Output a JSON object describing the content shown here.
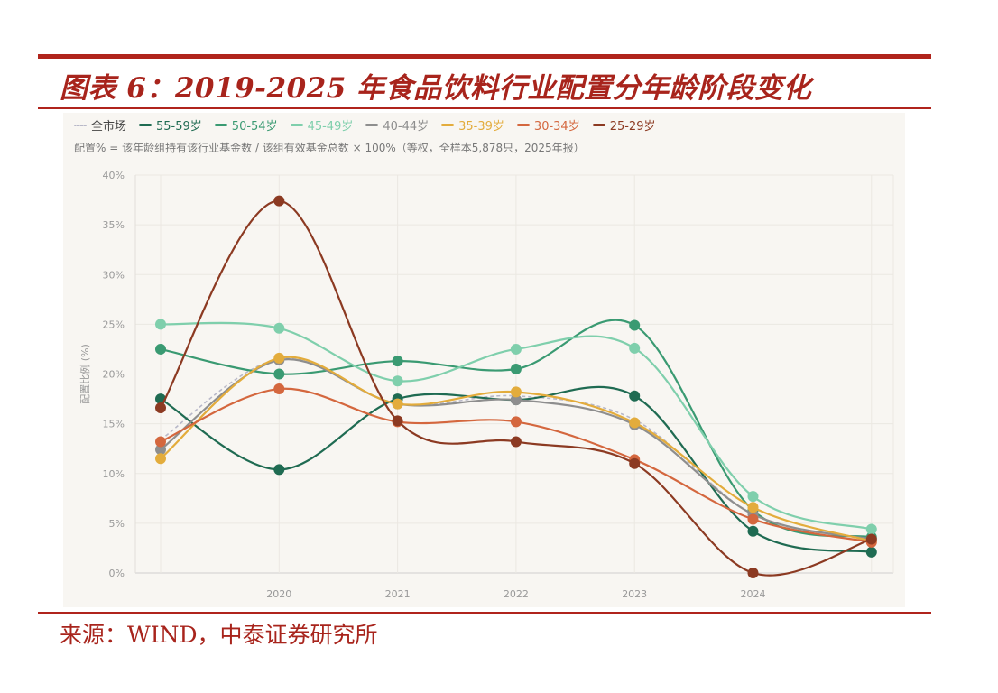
{
  "header": {
    "title": "图表 6：2019-2025 年食品饮料行业配置分年龄阶段变化"
  },
  "footer": {
    "source": "来源：WIND，中泰证券研究所"
  },
  "chart_data": {
    "type": "line",
    "title": "",
    "note": "配置% = 该年龄组持有该行业基金数 / 该组有效基金总数 × 100%（等权，全样本5,878只，2025年报）",
    "xlabel": "",
    "ylabel": "配置比例 (%)",
    "x": [
      2019,
      2020,
      2021,
      2022,
      2023,
      2024,
      2025
    ],
    "x_tick_labels": [
      "2020",
      "2021",
      "2022",
      "2023",
      "2024"
    ],
    "ylim": [
      0,
      40
    ],
    "y_tick_labels": [
      "0%",
      "5%",
      "10%",
      "15%",
      "20%",
      "25%",
      "30%",
      "35%",
      "40%"
    ],
    "grid": true,
    "legend": "top-left",
    "series": [
      {
        "name": "全市场",
        "color": "#b8b8c8",
        "dashed": true,
        "markers": false,
        "values": [
          13.4,
          21.5,
          17.0,
          17.8,
          15.4,
          5.9,
          3.4
        ]
      },
      {
        "name": "55-59岁",
        "color": "#1f6b52",
        "values": [
          17.5,
          10.4,
          17.5,
          17.4,
          17.8,
          4.2,
          2.1
        ]
      },
      {
        "name": "50-54岁",
        "color": "#3a9a72",
        "values": [
          22.5,
          20.0,
          21.3,
          20.5,
          24.9,
          6.3,
          3.6
        ]
      },
      {
        "name": "45-49岁",
        "color": "#7fcfac",
        "values": [
          25.0,
          24.6,
          19.3,
          22.5,
          22.6,
          7.7,
          4.4
        ]
      },
      {
        "name": "40-44岁",
        "color": "#8e8e8e",
        "values": [
          12.4,
          21.4,
          17.0,
          17.4,
          14.9,
          5.9,
          3.4
        ]
      },
      {
        "name": "35-39岁",
        "color": "#e3ac3c",
        "values": [
          11.5,
          21.6,
          17.0,
          18.2,
          15.1,
          6.6,
          3.2
        ]
      },
      {
        "name": "30-34岁",
        "color": "#d4673e",
        "values": [
          13.2,
          18.5,
          15.2,
          15.2,
          11.4,
          5.4,
          3.1
        ]
      },
      {
        "name": "25-29岁",
        "color": "#8c3a22",
        "values": [
          16.6,
          37.4,
          15.3,
          13.2,
          11.0,
          0.0,
          3.4
        ]
      }
    ]
  }
}
